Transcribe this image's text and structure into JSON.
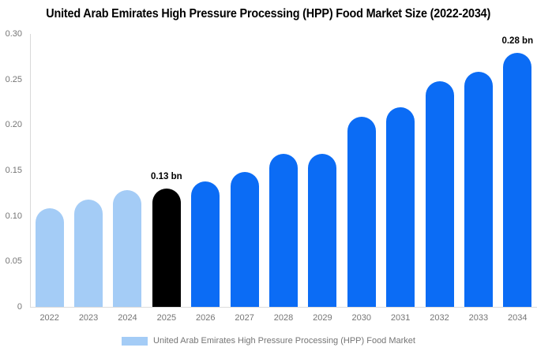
{
  "page": {
    "title": "United Arab Emirates High Pressure Processing (HPP) Food Market Size (2022-2034)"
  },
  "legend": {
    "label": "United Arab Emirates High Pressure Processing (HPP) Food Market",
    "swatch_color": "#A4CCF6"
  },
  "colors": {
    "historical_bar": "#A4CCF6",
    "base_year_bar": "#000000",
    "forecast_bar": "#0B6CF5",
    "axis_line": "#D9D9D9",
    "tick_text": "#757575",
    "annotation_text": "#000000",
    "background": "#FFFFFF"
  },
  "chart_data": {
    "type": "bar",
    "title": "United Arab Emirates High Pressure Processing (HPP) Food Market Size (2022-2034)",
    "categories": [
      "2022",
      "2023",
      "2024",
      "2025",
      "2026",
      "2027",
      "2028",
      "2029",
      "2030",
      "2031",
      "2032",
      "2033",
      "2034"
    ],
    "values": [
      0.108,
      0.118,
      0.128,
      0.13,
      0.138,
      0.148,
      0.168,
      0.168,
      0.209,
      0.219,
      0.248,
      0.258,
      0.279
    ],
    "bar_colors": [
      "#A4CCF6",
      "#A4CCF6",
      "#A4CCF6",
      "#000000",
      "#0B6CF5",
      "#0B6CF5",
      "#0B6CF5",
      "#0B6CF5",
      "#0B6CF5",
      "#0B6CF5",
      "#0B6CF5",
      "#0B6CF5",
      "#0B6CF5"
    ],
    "annotations": [
      {
        "category": "2025",
        "text": "0.13 bn"
      },
      {
        "category": "2034",
        "text": "0.28 bn"
      }
    ],
    "xlabel": "",
    "ylabel": "",
    "ylim": [
      0,
      0.3
    ],
    "yticks": [
      "0.30",
      "0.25",
      "0.20",
      "0.15",
      "0.10",
      "0.05",
      "0"
    ],
    "grid": false,
    "legend_position": "bottom"
  }
}
